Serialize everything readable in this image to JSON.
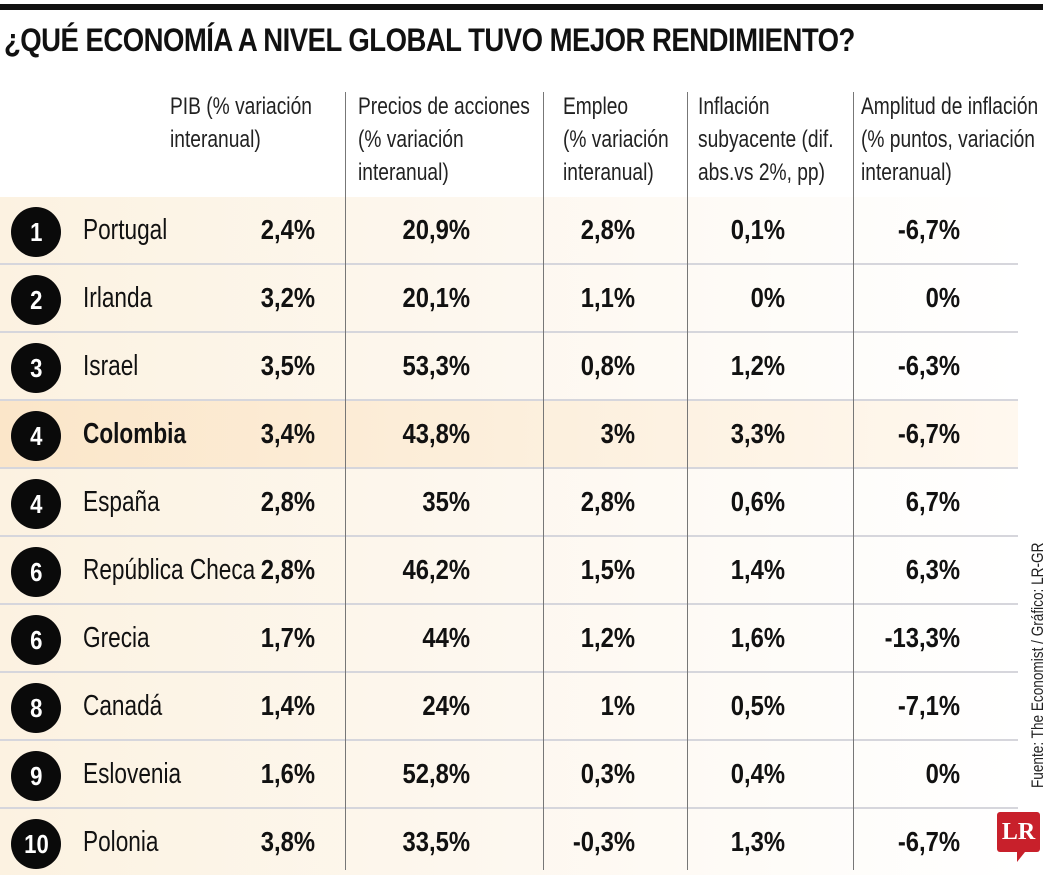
{
  "title": "¿QUÉ ECONOMÍA A NIVEL GLOBAL TUVO MEJOR RENDIMIENTO?",
  "source": "Fuente: The Economist / Gráfico: LR-GR",
  "logo": "LR",
  "colors": {
    "row_bg": "#fcf2e1",
    "highlight_bg": "#fbe6c9",
    "logo": "#c8202b",
    "circle": "#0a0a0a"
  },
  "chart_data": {
    "type": "table",
    "title": "¿QUÉ ECONOMÍA A NIVEL GLOBAL TUVO MEJOR RENDIMIENTO?",
    "columns": [
      [
        "PIB (% variación",
        "interanual)"
      ],
      [
        "Precios de acciones",
        "(% variación",
        "interanual)"
      ],
      [
        "Empleo",
        "(% variación",
        "interanual)"
      ],
      [
        "Inflación",
        "subyacente (dif.",
        "abs.vs 2%, pp)"
      ],
      [
        "Amplitud de inflación",
        "(% puntos, variación",
        "interanual)"
      ]
    ],
    "highlighted_row": "Colombia",
    "rows": [
      {
        "rank": "1",
        "country": "Portugal",
        "values": [
          "2,4%",
          "20,9%",
          "2,8%",
          "0,1%",
          "-6,7%"
        ]
      },
      {
        "rank": "2",
        "country": "Irlanda",
        "values": [
          "3,2%",
          "20,1%",
          "1,1%",
          "0%",
          "0%"
        ]
      },
      {
        "rank": "3",
        "country": "Israel",
        "values": [
          "3,5%",
          "53,3%",
          "0,8%",
          "1,2%",
          "-6,3%"
        ]
      },
      {
        "rank": "4",
        "country": "Colombia",
        "values": [
          "3,4%",
          "43,8%",
          "3%",
          "3,3%",
          "-6,7%"
        ]
      },
      {
        "rank": "4",
        "country": "España",
        "values": [
          "2,8%",
          "35%",
          "2,8%",
          "0,6%",
          "6,7%"
        ]
      },
      {
        "rank": "6",
        "country": "República Checa",
        "values": [
          "2,8%",
          "46,2%",
          "1,5%",
          "1,4%",
          "6,3%"
        ]
      },
      {
        "rank": "6",
        "country": "Grecia",
        "values": [
          "1,7%",
          "44%",
          "1,2%",
          "1,6%",
          "-13,3%"
        ]
      },
      {
        "rank": "8",
        "country": "Canadá",
        "values": [
          "1,4%",
          "24%",
          "1%",
          "0,5%",
          "-7,1%"
        ]
      },
      {
        "rank": "9",
        "country": "Eslovenia",
        "values": [
          "1,6%",
          "52,8%",
          "0,3%",
          "0,4%",
          "0%"
        ]
      },
      {
        "rank": "10",
        "country": "Polonia",
        "values": [
          "3,8%",
          "33,5%",
          "-0,3%",
          "1,3%",
          "-6,7%"
        ]
      }
    ]
  }
}
